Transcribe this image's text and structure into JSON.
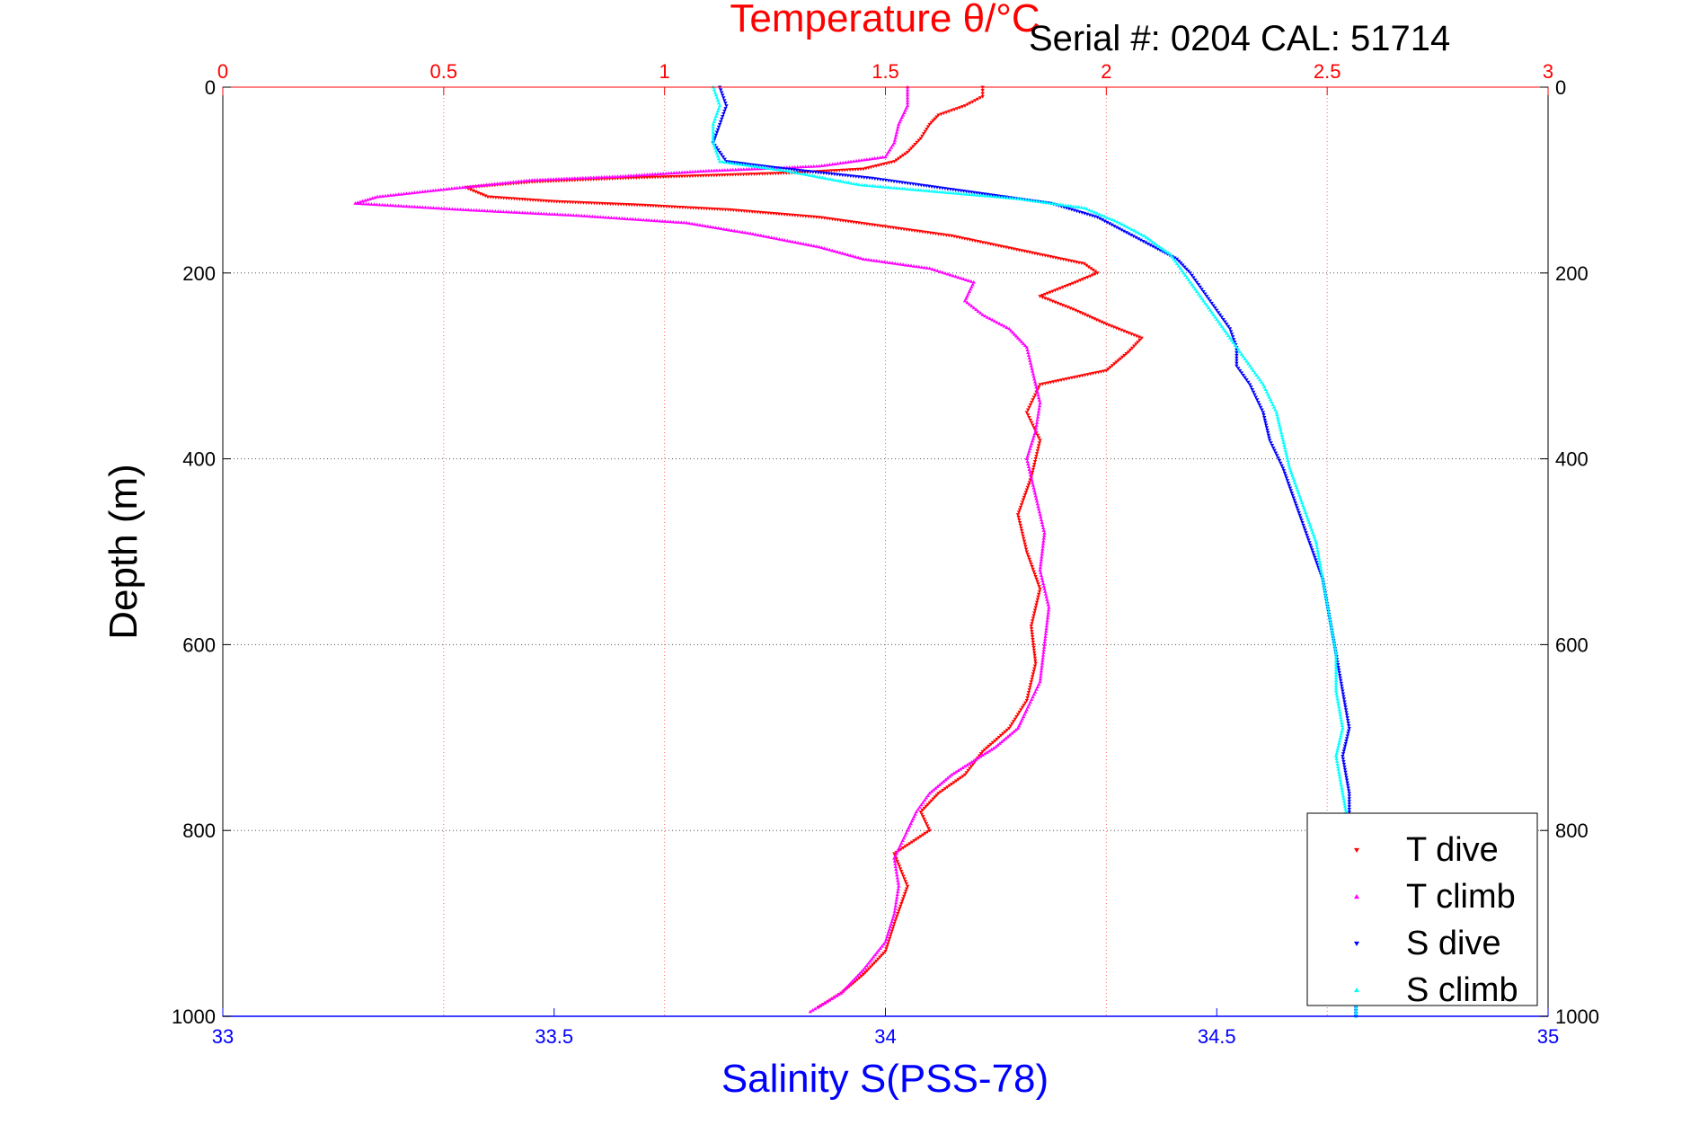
{
  "header": {
    "serial_text": "Serial #: 0204   CAL: 51714"
  },
  "chart_data": {
    "type": "scatter",
    "title": "Temperature θ/°C",
    "xlabel": "Salinity S(PSS-78)",
    "ylabel": "Depth (m)",
    "top_axis": {
      "label": "Temperature θ/°C",
      "lim": [
        0,
        3
      ],
      "ticks": [
        0,
        0.5,
        1,
        1.5,
        2,
        2.5,
        3
      ],
      "tick_labels": [
        "0",
        "0.5",
        "1",
        "1.5",
        "2",
        "2.5",
        "3"
      ],
      "color": "#ff0000"
    },
    "bottom_axis": {
      "label": "Salinity S(PSS-78)",
      "lim": [
        33,
        35
      ],
      "ticks": [
        33,
        33.5,
        34,
        34.5,
        35
      ],
      "tick_labels": [
        "33",
        "33.5",
        "34",
        "34.5",
        "35"
      ],
      "color": "#0000ff"
    },
    "y_axis": {
      "label": "Depth (m)",
      "lim": [
        0,
        1000
      ],
      "reversed": true,
      "ticks": [
        0,
        200,
        400,
        600,
        800,
        1000
      ],
      "tick_labels": [
        "0",
        "200",
        "400",
        "600",
        "800",
        "1000"
      ]
    },
    "grid": true,
    "legend_position": "bottom-right",
    "series": [
      {
        "name": "T dive",
        "axis": "temperature",
        "color": "#ff0000",
        "marker": "triangle-down",
        "points": [
          [
            1.72,
            0
          ],
          [
            1.72,
            10
          ],
          [
            1.68,
            20
          ],
          [
            1.62,
            30
          ],
          [
            1.6,
            40
          ],
          [
            1.58,
            55
          ],
          [
            1.55,
            70
          ],
          [
            1.52,
            80
          ],
          [
            1.45,
            88
          ],
          [
            1.3,
            92
          ],
          [
            1.1,
            95
          ],
          [
            0.9,
            98
          ],
          [
            0.7,
            102
          ],
          [
            0.55,
            108
          ],
          [
            0.6,
            118
          ],
          [
            0.75,
            123
          ],
          [
            0.95,
            127
          ],
          [
            1.15,
            132
          ],
          [
            1.35,
            140
          ],
          [
            1.5,
            150
          ],
          [
            1.65,
            160
          ],
          [
            1.75,
            170
          ],
          [
            1.85,
            180
          ],
          [
            1.95,
            190
          ],
          [
            1.98,
            200
          ],
          [
            1.93,
            210
          ],
          [
            1.85,
            225
          ],
          [
            1.93,
            240
          ],
          [
            2.0,
            255
          ],
          [
            2.08,
            270
          ],
          [
            2.05,
            285
          ],
          [
            2.0,
            305
          ],
          [
            1.85,
            320
          ],
          [
            1.82,
            350
          ],
          [
            1.85,
            380
          ],
          [
            1.83,
            420
          ],
          [
            1.8,
            460
          ],
          [
            1.82,
            500
          ],
          [
            1.85,
            540
          ],
          [
            1.83,
            580
          ],
          [
            1.84,
            620
          ],
          [
            1.82,
            660
          ],
          [
            1.78,
            690
          ],
          [
            1.72,
            715
          ],
          [
            1.68,
            740
          ],
          [
            1.62,
            760
          ],
          [
            1.58,
            780
          ],
          [
            1.6,
            800
          ],
          [
            1.52,
            825
          ],
          [
            1.55,
            860
          ],
          [
            1.52,
            900
          ],
          [
            1.5,
            930
          ],
          [
            1.45,
            955
          ],
          [
            1.4,
            975
          ],
          [
            1.35,
            990
          ]
        ]
      },
      {
        "name": "T climb",
        "axis": "temperature",
        "color": "#ff00ff",
        "marker": "triangle-up",
        "points": [
          [
            1.55,
            0
          ],
          [
            1.55,
            20
          ],
          [
            1.53,
            40
          ],
          [
            1.52,
            60
          ],
          [
            1.5,
            75
          ],
          [
            1.35,
            85
          ],
          [
            1.1,
            90
          ],
          [
            0.9,
            96
          ],
          [
            0.7,
            100
          ],
          [
            0.5,
            110
          ],
          [
            0.35,
            118
          ],
          [
            0.3,
            125
          ],
          [
            0.55,
            132
          ],
          [
            0.8,
            138
          ],
          [
            1.05,
            146
          ],
          [
            1.2,
            158
          ],
          [
            1.35,
            172
          ],
          [
            1.45,
            185
          ],
          [
            1.6,
            195
          ],
          [
            1.7,
            210
          ],
          [
            1.68,
            230
          ],
          [
            1.72,
            245
          ],
          [
            1.78,
            260
          ],
          [
            1.82,
            280
          ],
          [
            1.83,
            300
          ],
          [
            1.84,
            320
          ],
          [
            1.85,
            340
          ],
          [
            1.84,
            370
          ],
          [
            1.82,
            400
          ],
          [
            1.84,
            440
          ],
          [
            1.86,
            480
          ],
          [
            1.85,
            520
          ],
          [
            1.87,
            560
          ],
          [
            1.86,
            600
          ],
          [
            1.85,
            640
          ],
          [
            1.82,
            670
          ],
          [
            1.8,
            690
          ],
          [
            1.75,
            710
          ],
          [
            1.7,
            725
          ],
          [
            1.65,
            740
          ],
          [
            1.6,
            760
          ],
          [
            1.57,
            780
          ],
          [
            1.55,
            800
          ],
          [
            1.52,
            830
          ],
          [
            1.53,
            860
          ],
          [
            1.52,
            890
          ],
          [
            1.5,
            920
          ],
          [
            1.45,
            950
          ],
          [
            1.4,
            975
          ],
          [
            1.33,
            995
          ]
        ]
      },
      {
        "name": "S dive",
        "axis": "salinity",
        "color": "#0000ff",
        "marker": "triangle-down",
        "points": [
          [
            33.75,
            0
          ],
          [
            33.76,
            20
          ],
          [
            33.75,
            40
          ],
          [
            33.74,
            60
          ],
          [
            33.76,
            80
          ],
          [
            33.85,
            88
          ],
          [
            33.98,
            98
          ],
          [
            34.05,
            105
          ],
          [
            34.15,
            115
          ],
          [
            34.25,
            125
          ],
          [
            34.32,
            140
          ],
          [
            34.36,
            155
          ],
          [
            34.4,
            170
          ],
          [
            34.44,
            185
          ],
          [
            34.46,
            200
          ],
          [
            34.48,
            220
          ],
          [
            34.5,
            240
          ],
          [
            34.52,
            260
          ],
          [
            34.53,
            280
          ],
          [
            34.53,
            300
          ],
          [
            34.55,
            320
          ],
          [
            34.57,
            350
          ],
          [
            34.58,
            380
          ],
          [
            34.6,
            410
          ],
          [
            34.62,
            450
          ],
          [
            34.64,
            490
          ],
          [
            34.66,
            530
          ],
          [
            34.67,
            570
          ],
          [
            34.68,
            610
          ],
          [
            34.69,
            650
          ],
          [
            34.7,
            690
          ],
          [
            34.69,
            720
          ],
          [
            34.7,
            760
          ],
          [
            34.7,
            800
          ],
          [
            34.7,
            850
          ],
          [
            34.7,
            900
          ],
          [
            34.71,
            950
          ],
          [
            34.71,
            1000
          ]
        ]
      },
      {
        "name": "S climb",
        "axis": "salinity",
        "color": "#00ffff",
        "marker": "triangle-up",
        "points": [
          [
            33.74,
            0
          ],
          [
            33.75,
            20
          ],
          [
            33.74,
            40
          ],
          [
            33.74,
            60
          ],
          [
            33.75,
            80
          ],
          [
            33.85,
            90
          ],
          [
            33.96,
            105
          ],
          [
            34.07,
            112
          ],
          [
            34.2,
            120
          ],
          [
            34.3,
            130
          ],
          [
            34.35,
            145
          ],
          [
            34.39,
            160
          ],
          [
            34.43,
            180
          ],
          [
            34.45,
            200
          ],
          [
            34.47,
            220
          ],
          [
            34.49,
            240
          ],
          [
            34.51,
            260
          ],
          [
            34.53,
            280
          ],
          [
            34.55,
            300
          ],
          [
            34.57,
            320
          ],
          [
            34.59,
            350
          ],
          [
            34.6,
            380
          ],
          [
            34.61,
            410
          ],
          [
            34.63,
            450
          ],
          [
            34.65,
            490
          ],
          [
            34.66,
            530
          ],
          [
            34.67,
            570
          ],
          [
            34.68,
            610
          ],
          [
            34.68,
            650
          ],
          [
            34.69,
            690
          ],
          [
            34.68,
            720
          ],
          [
            34.69,
            760
          ],
          [
            34.7,
            800
          ],
          [
            34.7,
            850
          ],
          [
            34.7,
            900
          ],
          [
            34.71,
            950
          ],
          [
            34.71,
            1000
          ]
        ]
      }
    ]
  }
}
